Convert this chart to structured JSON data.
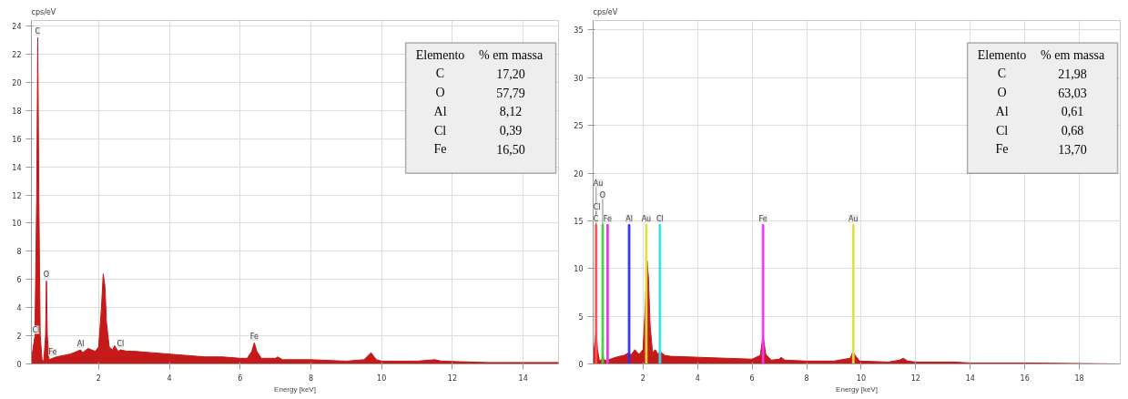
{
  "chart_data": [
    {
      "type": "area",
      "xlabel": "Energy [keV]",
      "ylabel": "cps/eV",
      "xlim": [
        0.1,
        15
      ],
      "ylim": [
        0,
        24.4
      ],
      "xticks": [
        2,
        4,
        6,
        8,
        10,
        12,
        14
      ],
      "yticks": [
        0,
        2,
        4,
        6,
        8,
        10,
        12,
        14,
        16,
        18,
        20,
        22,
        24
      ],
      "grid": true,
      "series": [
        {
          "color": "#c41a1a",
          "x": [
            0.1,
            0.2,
            0.25,
            0.28,
            0.31,
            0.35,
            0.4,
            0.45,
            0.5,
            0.525,
            0.55,
            0.6,
            0.7,
            0.8,
            1.0,
            1.2,
            1.4,
            1.49,
            1.55,
            1.7,
            1.9,
            2.0,
            2.08,
            2.13,
            2.18,
            2.22,
            2.3,
            2.4,
            2.45,
            2.55,
            2.62,
            2.8,
            3.0,
            3.5,
            4.0,
            4.5,
            5.0,
            5.5,
            6.0,
            6.2,
            6.33,
            6.4,
            6.47,
            6.6,
            7.0,
            7.06,
            7.2,
            8.0,
            9.0,
            9.5,
            9.7,
            9.85,
            10.0,
            11.0,
            11.5,
            11.7,
            13.0,
            15.0
          ],
          "values": [
            0.3,
            2,
            12,
            23.2,
            12,
            2,
            0.3,
            0.2,
            2,
            5.9,
            2,
            0.3,
            0.4,
            0.5,
            0.6,
            0.7,
            0.9,
            1.0,
            0.8,
            1.1,
            0.9,
            1.2,
            4,
            6.4,
            5.5,
            3,
            1.2,
            1.0,
            1.3,
            0.9,
            1.0,
            0.9,
            0.9,
            0.8,
            0.7,
            0.6,
            0.5,
            0.5,
            0.4,
            0.4,
            0.9,
            1.5,
            0.9,
            0.4,
            0.4,
            0.5,
            0.3,
            0.3,
            0.2,
            0.3,
            0.8,
            0.3,
            0.2,
            0.2,
            0.3,
            0.2,
            0.1,
            0.1
          ]
        }
      ],
      "annotations": [
        {
          "text": "C",
          "x": 0.28,
          "y": 23.2
        },
        {
          "text": "O",
          "x": 0.525,
          "y": 5.9
        },
        {
          "text": "Cl",
          "x": 0.2,
          "y": 2
        },
        {
          "text": "Fe",
          "x": 0.7,
          "y": 0.4
        },
        {
          "text": "Al",
          "x": 1.49,
          "y": 1.0
        },
        {
          "text": "Cl",
          "x": 2.62,
          "y": 1.0
        },
        {
          "text": "Fe",
          "x": 6.4,
          "y": 1.5
        },
        "Elemento",
        "% em massa",
        "C",
        "17,20",
        "O",
        "57,79",
        "Al",
        "8,12",
        "Cl",
        "0,39",
        "Fe",
        "16,50"
      ]
    },
    {
      "type": "area",
      "xlabel": "Energy [keV]",
      "ylabel": "cps/eV",
      "xlim": [
        0.17,
        19.5
      ],
      "ylim": [
        0,
        36
      ],
      "xticks": [
        2,
        4,
        6,
        8,
        10,
        12,
        14,
        16,
        18
      ],
      "yticks": [
        0,
        5,
        10,
        15,
        20,
        25,
        30,
        35
      ],
      "grid": true,
      "series": [
        {
          "color": "#c41a1a",
          "x": [
            0.17,
            0.22,
            0.28,
            0.33,
            0.4,
            0.5,
            0.52,
            0.56,
            0.7,
            1.0,
            1.3,
            1.49,
            1.55,
            1.7,
            1.85,
            2.0,
            2.08,
            2.15,
            2.2,
            2.26,
            2.35,
            2.45,
            2.55,
            2.62,
            2.8,
            3.0,
            4.0,
            5.0,
            6.0,
            6.3,
            6.4,
            6.5,
            6.7,
            7.0,
            7.06,
            7.2,
            8.0,
            9.0,
            9.6,
            9.7,
            9.8,
            9.95,
            11.0,
            11.4,
            11.55,
            11.7,
            12.0,
            13.4,
            14.0,
            16.0,
            19.5
          ],
          "values": [
            0.5,
            2,
            3.5,
            1.5,
            0.3,
            0.5,
            1.2,
            0.4,
            0.4,
            0.7,
            0.9,
            1.2,
            0.9,
            1.5,
            1.0,
            1.5,
            6,
            10.8,
            9,
            4,
            1.2,
            1.5,
            1.0,
            1.3,
            0.9,
            0.8,
            0.7,
            0.6,
            0.5,
            0.9,
            3.0,
            1.0,
            0.4,
            0.5,
            0.7,
            0.4,
            0.3,
            0.3,
            0.6,
            1.3,
            0.8,
            0.3,
            0.2,
            0.4,
            0.6,
            0.3,
            0.2,
            0.2,
            0.1,
            0.1,
            0.0
          ]
        },
        {
          "type": "bar",
          "x": [
            0.28,
            0.52,
            0.7,
            1.49,
            2.12,
            2.62,
            6.4,
            9.71
          ],
          "values": [
            14.6,
            14.6,
            14.6,
            14.6,
            14.6,
            14.6,
            14.6,
            14.6
          ],
          "colors": [
            "#ff5050",
            "#40d040",
            "#e040e0",
            "#3030f0",
            "#e0e040",
            "#30e0f0",
            "#ff30ff",
            "#e0e040"
          ]
        }
      ],
      "annotations": [
        {
          "text": "C",
          "x": 0.28,
          "y": 14.6
        },
        {
          "text": "Fe",
          "x": 0.7,
          "y": 14.6
        },
        {
          "text": "Al",
          "x": 1.49,
          "y": 14.6
        },
        {
          "text": "Au",
          "x": 2.12,
          "y": 14.6
        },
        {
          "text": "Cl",
          "x": 2.62,
          "y": 14.6
        },
        {
          "text": "Fe",
          "x": 6.4,
          "y": 14.6
        },
        {
          "text": "Au",
          "x": 9.71,
          "y": 14.6
        },
        {
          "text": "Cl",
          "x": 0.28,
          "y": 14.6
        },
        {
          "text": "O",
          "x": 0.52,
          "y": 14.6
        },
        {
          "text": "Au",
          "x": 0.28,
          "y": 14.6
        },
        "Elemento",
        "% em massa",
        "C",
        "21,98",
        "O",
        "63,03",
        "Al",
        "0,61",
        "Cl",
        "0,68",
        "Fe",
        "13,70"
      ]
    }
  ]
}
